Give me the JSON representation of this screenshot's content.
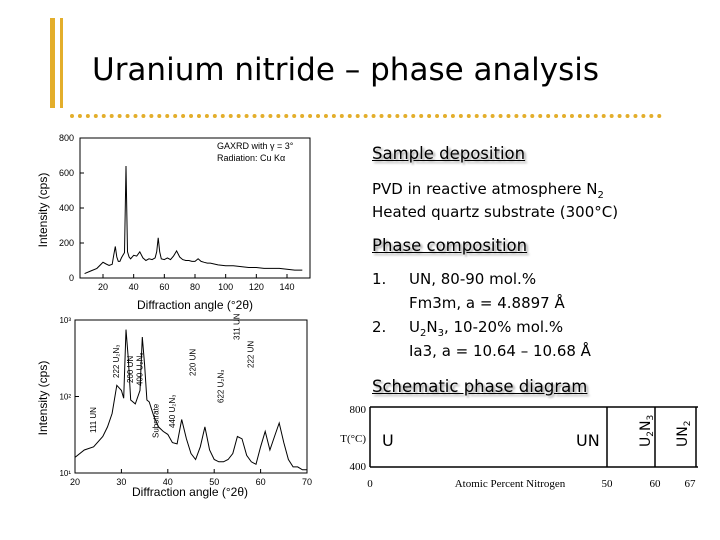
{
  "slide": {
    "title": "Uranium nitride – phase analysis",
    "accent_color": "#e3ae2b"
  },
  "sections": {
    "deposition": {
      "heading": "Sample deposition",
      "line1_prefix": "PVD in reactive atmosphere N",
      "line1_sub": "2",
      "line2": "Heated quartz substrate (300°C)"
    },
    "composition": {
      "heading": "Phase composition",
      "items": [
        {
          "num": "1.",
          "line1": "UN, 80-90 mol.%",
          "line2": "Fm3m, a = 4.8897 Å"
        },
        {
          "num": "2.",
          "line1_a": "U",
          "line1_sub1": "2",
          "line1_b": "N",
          "line1_sub2": "3",
          "line1_c": ", 10-20% mol.%",
          "line2": "Ia3, a = 10.64 – 10.68 Å"
        }
      ]
    },
    "phase_diagram": {
      "heading": "Schematic phase diagram",
      "y_label": "T(°C)",
      "y_ticks": [
        "800",
        "400"
      ],
      "x_ticks": [
        "0",
        "50",
        "60",
        "67"
      ],
      "x_label": "Atomic Percent Nitrogen",
      "regions": {
        "u": "U",
        "un": "UN"
      },
      "columns": {
        "u2n3": {
          "a": "U",
          "s1": "2",
          "b": "N",
          "s2": "3"
        },
        "un2": {
          "a": "UN",
          "s1": "2"
        }
      }
    }
  },
  "chart_data": [
    {
      "type": "line",
      "title": "",
      "annotation_line1": "GAXRD with γ = 3°",
      "annotation_line2": "Radiation: Cu Kα",
      "xlabel": "Diffraction angle (°2θ)",
      "ylabel": "Intensity (cps)",
      "xlim": [
        5,
        155
      ],
      "ylim": [
        0,
        800
      ],
      "x_ticks": [
        "20",
        "40",
        "60",
        "80",
        "100",
        "120",
        "140"
      ],
      "y_ticks": [
        "0",
        "200",
        "400",
        "600",
        "800"
      ],
      "series": [
        {
          "x": [
            8,
            12,
            16,
            20,
            22,
            24,
            26,
            27,
            28,
            29,
            30,
            31,
            32,
            33,
            34,
            35,
            36,
            37,
            38,
            40,
            42,
            44,
            46,
            48,
            50,
            52,
            54,
            55,
            56,
            57,
            58,
            60,
            62,
            64,
            66,
            68,
            70,
            72,
            74,
            76,
            78,
            80,
            82,
            84,
            86,
            88,
            90,
            95,
            100,
            105,
            110,
            115,
            120,
            125,
            130,
            135,
            140,
            145,
            150
          ],
          "y": [
            25,
            40,
            55,
            90,
            80,
            72,
            78,
            130,
            180,
            120,
            95,
            95,
            115,
            130,
            145,
            640,
            150,
            120,
            110,
            130,
            125,
            150,
            115,
            100,
            110,
            105,
            115,
            150,
            230,
            150,
            110,
            105,
            115,
            105,
            125,
            155,
            120,
            105,
            100,
            100,
            95,
            95,
            110,
            95,
            90,
            85,
            85,
            75,
            70,
            70,
            65,
            60,
            60,
            55,
            55,
            55,
            50,
            45,
            45
          ]
        }
      ]
    },
    {
      "type": "line",
      "title": "",
      "xlabel": "Diffraction angle (°2θ)",
      "ylabel": "Intensity (cps)",
      "xlim": [
        20,
        70
      ],
      "y_scale": "log",
      "ylim": [
        10,
        1000
      ],
      "x_ticks": [
        "20",
        "30",
        "40",
        "50",
        "60",
        "70"
      ],
      "y_ticks": [
        "10¹",
        "10²",
        "10³"
      ],
      "peak_labels": [
        "111 UN",
        "222 U₂N₃",
        "200 UN",
        "400 U₂N₃",
        "Substrate",
        "440 U₂N₃",
        "220 UN",
        "622 U₂N₃",
        "311 UN",
        "222 UN"
      ],
      "series": [
        {
          "x": [
            20,
            22,
            24,
            26,
            27,
            28,
            29,
            30,
            30.5,
            31,
            31.5,
            32,
            33,
            34,
            34.5,
            35,
            35.5,
            36,
            37,
            38,
            39,
            40,
            41,
            42,
            43,
            44,
            45,
            46,
            47,
            48,
            49,
            50,
            51,
            52,
            53,
            54,
            55,
            56,
            57,
            58,
            59,
            60,
            61,
            62,
            63,
            64,
            65,
            66,
            67,
            68,
            69,
            70
          ],
          "y": [
            16,
            20,
            22,
            30,
            40,
            60,
            140,
            120,
            95,
            750,
            300,
            90,
            80,
            120,
            600,
            260,
            90,
            85,
            55,
            40,
            35,
            32,
            25,
            24,
            50,
            28,
            18,
            15,
            22,
            40,
            20,
            15,
            14,
            14,
            15,
            18,
            30,
            28,
            17,
            14,
            13,
            22,
            35,
            20,
            30,
            45,
            25,
            15,
            12,
            12,
            11,
            11
          ]
        }
      ]
    }
  ]
}
